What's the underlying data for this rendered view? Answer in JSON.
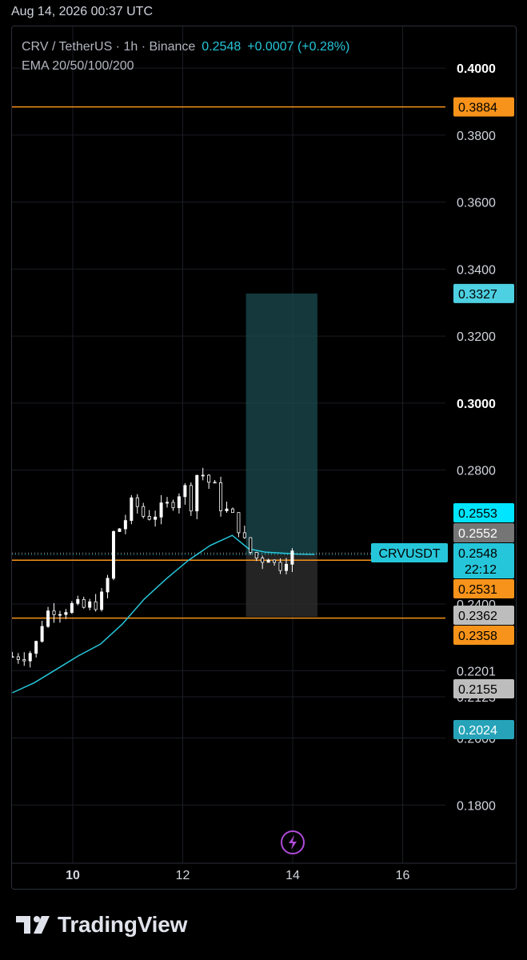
{
  "timestamp": "Aug 14, 2026 00:37 UTC",
  "legend": {
    "symbol_line": "CRV / TetherUS · 1h · Binance",
    "price": "0.2548",
    "change": "+0.0007 (+0.28%)",
    "indicator": "EMA 20/50/100/200"
  },
  "brand": "TradingView",
  "colors": {
    "background": "#000000",
    "candle_up": "#ffffff",
    "candle_down": "#ffffff",
    "accent_cyan": "#26c6da",
    "level_orange": "#f7931a",
    "gray_label": "#9e9e9e",
    "position_target_fill": "#1b4b50",
    "position_stop_fill": "#2a2a2a"
  },
  "chart_data": {
    "type": "candlestick",
    "symbol": "CRVUSDT",
    "ylim": [
      0.17,
      0.41
    ],
    "xlim": [
      8.9,
      16.8
    ],
    "y_ticks": [
      "0.4000",
      "0.3800",
      "0.3600",
      "0.3400",
      "0.3200",
      "0.3000",
      "0.2800",
      "0.2400",
      "0.2201",
      "0.2123",
      "0.2000",
      "0.1800"
    ],
    "bold_y_ticks": [
      "0.4000",
      "0.3000"
    ],
    "x_ticks": [
      {
        "label": "10",
        "value": 10,
        "bold": true
      },
      {
        "label": "12",
        "value": 12,
        "bold": false
      },
      {
        "label": "14",
        "value": 14,
        "bold": false
      },
      {
        "label": "16",
        "value": 16,
        "bold": false
      }
    ],
    "horizontal_levels": [
      {
        "price": 0.3884,
        "label": "0.3884",
        "color": "#f7931a"
      },
      {
        "price": 0.2531,
        "label": "0.2531",
        "color": "#f7931a"
      },
      {
        "price": 0.2358,
        "label": "0.2358",
        "color": "#f7931a"
      }
    ],
    "price_labels": [
      {
        "price": 0.3884,
        "label": "0.3884",
        "bg": "#f7931a",
        "fg": "#000000"
      },
      {
        "price": 0.3327,
        "label": "0.3327",
        "bg": "#4dd0e1",
        "fg": "#000000"
      },
      {
        "price": 0.2553,
        "label": "0.2553",
        "bg": "#00e5ff",
        "fg": "#000000"
      },
      {
        "price": 0.2552,
        "label": "0.2552",
        "bg": "#757575",
        "fg": "#ffffff"
      },
      {
        "price": 0.2548,
        "label": "0.2548",
        "sublabel": "22:12",
        "bg": "#26c6da",
        "fg": "#000000",
        "tag": "CRVUSDT"
      },
      {
        "price": 0.2531,
        "label": "0.2531",
        "bg": "#f7931a",
        "fg": "#000000"
      },
      {
        "price": 0.2362,
        "label": "0.2362",
        "bg": "#bdbdbd",
        "fg": "#000000"
      },
      {
        "price": 0.2358,
        "label": "0.2358",
        "bg": "#f7931a",
        "fg": "#000000"
      },
      {
        "price": 0.2155,
        "label": "0.2155",
        "bg": "#bdbdbd",
        "fg": "#000000"
      },
      {
        "price": 0.2024,
        "label": "0.2024",
        "bg": "#26a3b8",
        "fg": "#ffffff"
      }
    ],
    "position": {
      "x_start": 13.15,
      "x_end": 14.45,
      "entry": 0.2548,
      "target": 0.3327,
      "stop": 0.2362
    },
    "ema": {
      "x": [
        8.9,
        9.3,
        9.7,
        10.1,
        10.5,
        10.9,
        11.3,
        11.7,
        12.1,
        12.5,
        12.9,
        13.2,
        13.5,
        13.8,
        14.1,
        14.4
      ],
      "y": [
        0.2135,
        0.2165,
        0.2205,
        0.2245,
        0.228,
        0.234,
        0.2415,
        0.2475,
        0.253,
        0.2575,
        0.2605,
        0.2565,
        0.2555,
        0.2552,
        0.2549,
        0.2548
      ]
    },
    "close_path": {
      "x": [
        8.9,
        9.1,
        9.3,
        9.45,
        9.6,
        9.8,
        10.0,
        10.2,
        10.4,
        10.6,
        10.75,
        10.9,
        11.1,
        11.3,
        11.5,
        11.7,
        11.9,
        12.0,
        12.15,
        12.3,
        12.4,
        12.55,
        12.7,
        12.85,
        13.0,
        13.1,
        13.25,
        13.4,
        13.55,
        13.7,
        13.8,
        13.9,
        14.0
      ],
      "y": [
        0.2243,
        0.2248,
        0.2262,
        0.235,
        0.239,
        0.2385,
        0.2395,
        0.2388,
        0.24,
        0.243,
        0.262,
        0.263,
        0.271,
        0.266,
        0.267,
        0.269,
        0.272,
        0.276,
        0.27,
        0.282,
        0.277,
        0.276,
        0.269,
        0.267,
        0.264,
        0.259,
        0.255,
        0.253,
        0.255,
        0.251,
        0.252,
        0.2545,
        0.2548
      ]
    },
    "event_marker": "lightning-icon"
  }
}
